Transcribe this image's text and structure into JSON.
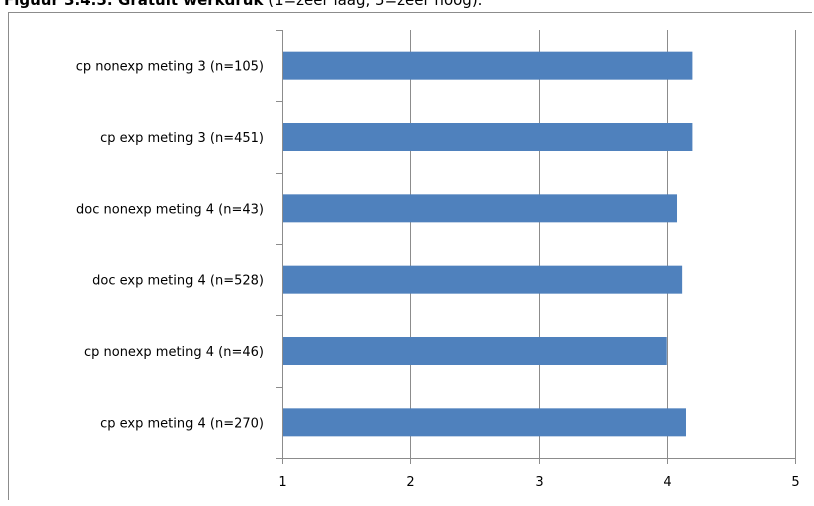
{
  "caption": {
    "bold": "Figuur 3.4.5: Gratuit werkdruk",
    "rest": " (1=zeer laag, 5=zeer hoog)."
  },
  "colors": {
    "bar": "#4f81bd",
    "grid": "#8c8c8c",
    "axis": "#8c8c8c"
  },
  "chart_data": {
    "type": "bar",
    "orientation": "horizontal",
    "categories": [
      "cp nonexp meting 3 (n=105)",
      "cp exp meting 3 (n=451)",
      "doc nonexp meting 4 (n=43)",
      "doc exp meting 4 (n=528)",
      "cp nonexp meting 4 (n=46)",
      "cp exp meting 4 (n=270)"
    ],
    "values": [
      4.2,
      4.2,
      4.08,
      4.12,
      4.0,
      4.15
    ],
    "xlim": [
      1,
      5
    ],
    "xticks": [
      1,
      2,
      3,
      4,
      5
    ],
    "grid": true,
    "legend": "none",
    "title": "",
    "xlabel": "",
    "ylabel": ""
  }
}
